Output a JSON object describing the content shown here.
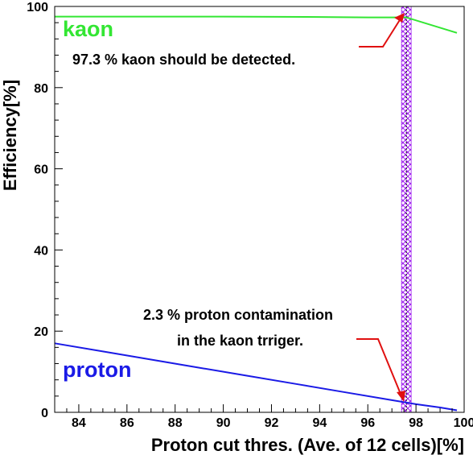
{
  "chart_data": {
    "type": "line",
    "xlabel": "Proton cut thres. (Ave. of 12 cells)[%]",
    "ylabel": "Efficiency[%]",
    "xlim": [
      83,
      100
    ],
    "ylim": [
      0,
      100
    ],
    "x_ticks": [
      "84",
      "86",
      "88",
      "90",
      "92",
      "94",
      "96",
      "98",
      "100"
    ],
    "y_ticks": [
      "0",
      "20",
      "40",
      "60",
      "80",
      "100"
    ],
    "series": [
      {
        "name": "kaon",
        "color": "#33e633",
        "x": [
          83.0,
          86.0,
          90.0,
          94.0,
          96.0,
          97.3,
          97.6,
          99.7
        ],
        "y": [
          97.5,
          97.5,
          97.5,
          97.4,
          97.3,
          97.3,
          97.3,
          93.5
        ]
      },
      {
        "name": "proton",
        "color": "#1a1ae6",
        "x": [
          83.0,
          85.0,
          87.0,
          89.0,
          91.0,
          93.0,
          95.0,
          97.0,
          98.0,
          99.0,
          99.7
        ],
        "y": [
          17.0,
          15.0,
          13.0,
          11.0,
          9.0,
          7.0,
          5.0,
          3.0,
          2.0,
          1.2,
          0.5
        ]
      }
    ],
    "cut_band": {
      "x_from": 97.4,
      "x_to": 97.8,
      "x_line": 97.6
    },
    "annotations": [
      {
        "text": "97.3 % kaon should be detected."
      },
      {
        "text": "2.3 % proton contamination"
      },
      {
        "text": "in the kaon trriger."
      }
    ]
  }
}
